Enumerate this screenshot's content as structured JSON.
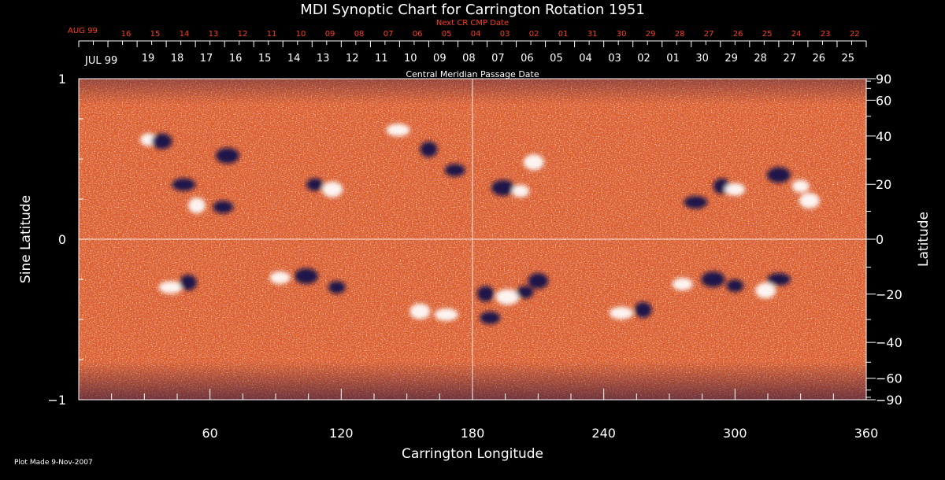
{
  "chart_data": {
    "type": "heatmap",
    "title": "MDI Synoptic Chart for Carrington Rotation 1951",
    "xlabel": "Carrington Longitude",
    "ylabel_left": "Sine Latitude",
    "ylabel_right": "Latitude",
    "xlim": [
      0,
      360
    ],
    "ylim": [
      -1,
      1
    ],
    "x_ticks": [
      60,
      120,
      180,
      240,
      300,
      360
    ],
    "y_ticks_left": [
      {
        "value": 1,
        "label": "1"
      },
      {
        "value": 0,
        "label": "0"
      },
      {
        "value": -1,
        "label": "−1"
      }
    ],
    "latitude_ticks": [
      {
        "value": 90,
        "label": "90"
      },
      {
        "value": 60,
        "label": "60"
      },
      {
        "value": 40,
        "label": "40"
      },
      {
        "value": 20,
        "label": "20"
      },
      {
        "value": 0,
        "label": "0"
      },
      {
        "value": -20,
        "label": "−20"
      },
      {
        "value": -40,
        "label": "−40"
      },
      {
        "value": -60,
        "label": "−60"
      },
      {
        "value": -90,
        "label": "−90"
      }
    ],
    "top_axis_next_title": "Next CR CMP Date",
    "top_axis_next_start": "AUG 99",
    "top_axis_next_dates": [
      "16",
      "15",
      "14",
      "13",
      "12",
      "11",
      "10",
      "09",
      "08",
      "07",
      "06",
      "05",
      "04",
      "03",
      "02",
      "01",
      "31",
      "30",
      "29",
      "28",
      "27",
      "26",
      "25",
      "24",
      "23",
      "22"
    ],
    "top_axis_title": "Central Meridian Passage Date",
    "top_axis_start": "JUL 99",
    "top_axis_dates": [
      "19",
      "18",
      "17",
      "16",
      "15",
      "14",
      "13",
      "12",
      "11",
      "10",
      "09",
      "08",
      "07",
      "06",
      "05",
      "04",
      "03",
      "02",
      "01",
      "30",
      "29",
      "28",
      "27",
      "26",
      "25"
    ],
    "colors": {
      "background": "#000000",
      "field_base": "#e05a1a",
      "positive_polarity": "#ffffff",
      "negative_polarity": "#120c4a",
      "top_axis_red": "#ff3b1f"
    },
    "active_regions": [
      {
        "lon": 32,
        "sinlat": 0.62,
        "polarity": "positive"
      },
      {
        "lon": 38,
        "sinlat": 0.61,
        "polarity": "negative"
      },
      {
        "lon": 48,
        "sinlat": 0.34,
        "polarity": "negative"
      },
      {
        "lon": 54,
        "sinlat": 0.21,
        "polarity": "positive"
      },
      {
        "lon": 66,
        "sinlat": 0.2,
        "polarity": "negative"
      },
      {
        "lon": 68,
        "sinlat": 0.52,
        "polarity": "negative"
      },
      {
        "lon": 108,
        "sinlat": 0.34,
        "polarity": "negative"
      },
      {
        "lon": 116,
        "sinlat": 0.31,
        "polarity": "positive"
      },
      {
        "lon": 146,
        "sinlat": 0.68,
        "polarity": "positive"
      },
      {
        "lon": 160,
        "sinlat": 0.56,
        "polarity": "negative"
      },
      {
        "lon": 172,
        "sinlat": 0.43,
        "polarity": "negative"
      },
      {
        "lon": 194,
        "sinlat": 0.32,
        "polarity": "negative"
      },
      {
        "lon": 202,
        "sinlat": 0.3,
        "polarity": "positive"
      },
      {
        "lon": 208,
        "sinlat": 0.48,
        "polarity": "positive"
      },
      {
        "lon": 282,
        "sinlat": 0.23,
        "polarity": "negative"
      },
      {
        "lon": 294,
        "sinlat": 0.33,
        "polarity": "negative"
      },
      {
        "lon": 300,
        "sinlat": 0.31,
        "polarity": "positive"
      },
      {
        "lon": 320,
        "sinlat": 0.4,
        "polarity": "negative"
      },
      {
        "lon": 330,
        "sinlat": 0.33,
        "polarity": "positive"
      },
      {
        "lon": 334,
        "sinlat": 0.24,
        "polarity": "positive"
      },
      {
        "lon": 42,
        "sinlat": -0.3,
        "polarity": "positive"
      },
      {
        "lon": 50,
        "sinlat": -0.27,
        "polarity": "negative"
      },
      {
        "lon": 92,
        "sinlat": -0.24,
        "polarity": "positive"
      },
      {
        "lon": 104,
        "sinlat": -0.23,
        "polarity": "negative"
      },
      {
        "lon": 118,
        "sinlat": -0.3,
        "polarity": "negative"
      },
      {
        "lon": 156,
        "sinlat": -0.45,
        "polarity": "positive"
      },
      {
        "lon": 168,
        "sinlat": -0.47,
        "polarity": "positive"
      },
      {
        "lon": 186,
        "sinlat": -0.34,
        "polarity": "negative"
      },
      {
        "lon": 188,
        "sinlat": -0.49,
        "polarity": "negative"
      },
      {
        "lon": 196,
        "sinlat": -0.36,
        "polarity": "positive"
      },
      {
        "lon": 204,
        "sinlat": -0.33,
        "polarity": "negative"
      },
      {
        "lon": 210,
        "sinlat": -0.26,
        "polarity": "negative"
      },
      {
        "lon": 248,
        "sinlat": -0.46,
        "polarity": "positive"
      },
      {
        "lon": 258,
        "sinlat": -0.44,
        "polarity": "negative"
      },
      {
        "lon": 276,
        "sinlat": -0.28,
        "polarity": "positive"
      },
      {
        "lon": 290,
        "sinlat": -0.25,
        "polarity": "negative"
      },
      {
        "lon": 300,
        "sinlat": -0.29,
        "polarity": "negative"
      },
      {
        "lon": 314,
        "sinlat": -0.32,
        "polarity": "positive"
      },
      {
        "lon": 320,
        "sinlat": -0.25,
        "polarity": "negative"
      }
    ]
  },
  "footer": {
    "plot_made": "Plot Made  9-Nov-2007"
  }
}
